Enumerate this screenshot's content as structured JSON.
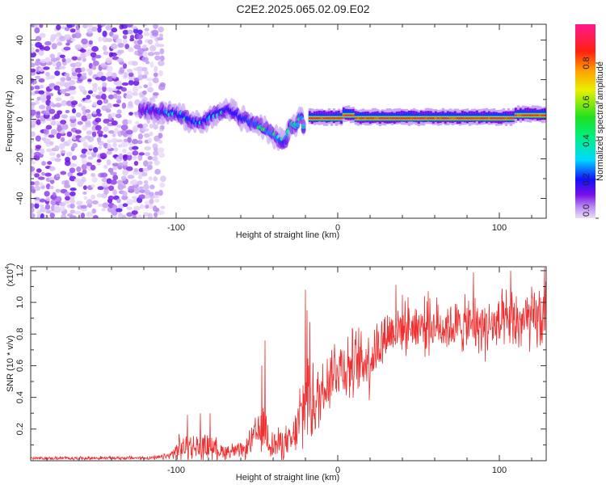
{
  "title": "C2E2.2025.065.02.09.E02",
  "chart_data": [
    {
      "type": "heatmap",
      "name": "spectrogram",
      "xlabel": "Height of straight line (km)",
      "ylabel": "Frequency (Hz)",
      "xlim": [
        -190,
        129
      ],
      "ylim": [
        -50,
        48
      ],
      "x_ticks": [
        -100,
        0,
        100
      ],
      "x_minor_step": 20,
      "y_ticks": [
        40,
        20,
        0,
        -20,
        -40
      ],
      "y_minor_step": 10,
      "colorbar": {
        "label": "Normalized spectral amplitude",
        "range": [
          0,
          1
        ],
        "ticks": [
          "0.0",
          "0.2",
          "0.4",
          "0.6",
          "0.8"
        ],
        "tick_values": [
          0,
          0.2,
          0.4,
          0.6,
          0.8
        ],
        "colormap": [
          [
            0,
            "#ece0fa"
          ],
          [
            0.06,
            "#b88af2"
          ],
          [
            0.12,
            "#7a10e6"
          ],
          [
            0.2,
            "#1010ff"
          ],
          [
            0.3,
            "#00d8ff"
          ],
          [
            0.42,
            "#00f080"
          ],
          [
            0.52,
            "#20e020"
          ],
          [
            0.66,
            "#e8f000"
          ],
          [
            0.76,
            "#ffa000"
          ],
          [
            0.86,
            "#ff2010"
          ],
          [
            1,
            "#ff1a8c"
          ]
        ]
      },
      "noise_region": {
        "x_range": [
          -190,
          -108
        ],
        "freq_range": [
          -50,
          48
        ],
        "max_amplitude": 0.15
      },
      "ridge_track": [
        {
          "x": -122,
          "f": 5,
          "amp": 0.18
        },
        {
          "x": -110,
          "f": 4,
          "amp": 0.25
        },
        {
          "x": -100,
          "f": 3,
          "amp": 0.35
        },
        {
          "x": -92,
          "f": 0,
          "amp": 0.35
        },
        {
          "x": -85,
          "f": -2,
          "amp": 0.3
        },
        {
          "x": -75,
          "f": 3,
          "amp": 0.35
        },
        {
          "x": -68,
          "f": 5,
          "amp": 0.3
        },
        {
          "x": -60,
          "f": 1,
          "amp": 0.35
        },
        {
          "x": -52,
          "f": -2,
          "amp": 0.4
        },
        {
          "x": -45,
          "f": -5,
          "amp": 0.45
        },
        {
          "x": -38,
          "f": -9,
          "amp": 0.45
        },
        {
          "x": -33,
          "f": -12,
          "amp": 0.35
        },
        {
          "x": -29,
          "f": -3,
          "amp": 0.7
        },
        {
          "x": -25,
          "f": -3,
          "amp": 0.5
        },
        {
          "x": -23,
          "f": 3,
          "amp": 0.4
        },
        {
          "x": -21,
          "f": -5,
          "amp": 0.6
        }
      ],
      "stable_line": {
        "x_range": [
          -18,
          129
        ],
        "f": 0.5,
        "amp": 0.95,
        "raised_segments": [
          [
            2,
            9,
            2
          ],
          [
            109,
            129,
            2
          ]
        ]
      }
    },
    {
      "type": "line",
      "name": "snr",
      "xlabel": "Height of straight line (km)",
      "ylabel": "SNR (10 * v/v)",
      "yscale_label": "(x10",
      "yscale_exp": "4",
      "yscale_close": ")",
      "xlim": [
        -190,
        129
      ],
      "ylim": [
        0,
        1.225
      ],
      "x_ticks": [
        -100,
        0,
        100
      ],
      "x_minor_step": 20,
      "y_ticks": [
        "0.2",
        "0.4",
        "0.6",
        "0.8",
        "1.0",
        "1.2"
      ],
      "y_tick_values": [
        0.2,
        0.4,
        0.6,
        0.8,
        1.0,
        1.2
      ],
      "y_minor_step": 0.1,
      "color": "#f03030",
      "envelope": [
        [
          -190,
          0.015,
          0.012
        ],
        [
          -112,
          0.018,
          0.014
        ],
        [
          -104,
          0.03,
          0.03
        ],
        [
          -98,
          0.08,
          0.09
        ],
        [
          -80,
          0.09,
          0.1
        ],
        [
          -72,
          0.06,
          0.06
        ],
        [
          -58,
          0.06,
          0.06
        ],
        [
          -52,
          0.15,
          0.12
        ],
        [
          -46,
          0.2,
          0.2
        ],
        [
          -40,
          0.1,
          0.12
        ],
        [
          -28,
          0.12,
          0.12
        ],
        [
          -22,
          0.3,
          0.3
        ],
        [
          -18,
          0.45,
          0.4
        ],
        [
          -13,
          0.35,
          0.3
        ],
        [
          -8,
          0.5,
          0.25
        ],
        [
          0,
          0.6,
          0.25
        ],
        [
          10,
          0.6,
          0.25
        ],
        [
          20,
          0.65,
          0.25
        ],
        [
          30,
          0.8,
          0.2
        ],
        [
          40,
          0.85,
          0.18
        ],
        [
          60,
          0.85,
          0.18
        ],
        [
          80,
          0.85,
          0.2
        ],
        [
          100,
          0.85,
          0.22
        ],
        [
          129,
          0.9,
          0.25
        ]
      ],
      "peaks": [
        [
          -93,
          0.29
        ],
        [
          -85,
          0.3
        ],
        [
          -79,
          0.3
        ],
        [
          -47,
          0.6
        ],
        [
          -45,
          0.76
        ],
        [
          -20,
          1.08
        ],
        [
          -19,
          0.95
        ],
        [
          36,
          1.11
        ],
        [
          56,
          1.07
        ],
        [
          84,
          1.19
        ],
        [
          107,
          1.2
        ],
        [
          128,
          1.22
        ]
      ]
    }
  ]
}
